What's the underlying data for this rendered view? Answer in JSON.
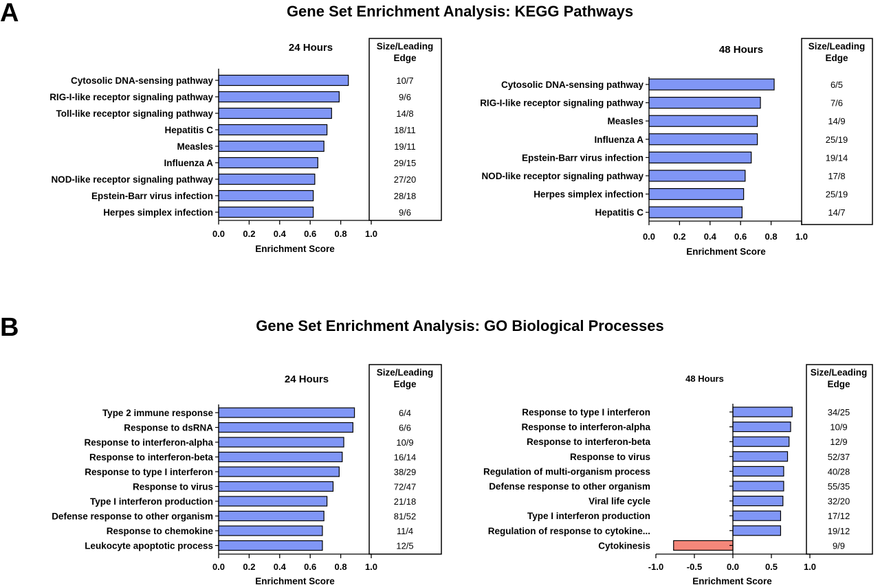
{
  "chart_data": [
    {
      "type": "bar",
      "orientation": "horizontal",
      "panel": "A",
      "title": "Gene Set Enrichment Analysis: KEGG Pathways",
      "subtitle": "24 Hours",
      "xlabel": "Enrichment Score",
      "xlim": [
        0,
        1
      ],
      "xticks": [
        "0.0",
        "0.2",
        "0.4",
        "0.6",
        "0.8",
        "1.0"
      ],
      "box_header": "Size/Leading Edge",
      "bar_color": "#8096f6",
      "categories": [
        "Cytosolic DNA-sensing pathway",
        "RIG-I-like receptor signaling pathway",
        "Toll-like receptor signaling pathway",
        "Hepatitis C",
        "Measles",
        "Influenza A",
        "NOD-like receptor signaling pathway",
        "Epstein-Barr virus infection",
        "Herpes simplex infection"
      ],
      "values": [
        0.85,
        0.79,
        0.74,
        0.71,
        0.69,
        0.65,
        0.63,
        0.62,
        0.62
      ],
      "leading_edge": [
        "10/7",
        "9/6",
        "14/8",
        "18/11",
        "19/11",
        "29/15",
        "27/20",
        "28/18",
        "9/6"
      ]
    },
    {
      "type": "bar",
      "orientation": "horizontal",
      "panel": "",
      "title": "",
      "subtitle": "48 Hours",
      "xlabel": "Enrichment Score",
      "xlim": [
        0,
        1
      ],
      "xticks": [
        "0.0",
        "0.2",
        "0.4",
        "0.6",
        "0.8",
        "1.0"
      ],
      "box_header": "Size/Leading Edge",
      "bar_color": "#8096f6",
      "categories": [
        "Cytosolic DNA-sensing pathway",
        "RIG-I-like receptor signaling pathway",
        "Measles",
        "Influenza A",
        "Epstein-Barr virus infection",
        "NOD-like receptor signaling pathway",
        "Herpes simplex infection",
        "Hepatitis C"
      ],
      "values": [
        0.82,
        0.73,
        0.71,
        0.71,
        0.67,
        0.63,
        0.62,
        0.61
      ],
      "leading_edge": [
        "6/5",
        "7/6",
        "14/9",
        "25/19",
        "19/14",
        "17/8",
        "25/19",
        "14/7"
      ]
    },
    {
      "type": "bar",
      "orientation": "horizontal",
      "panel": "B",
      "title": "Gene Set Enrichment Analysis: GO Biological Processes",
      "subtitle": "24 Hours",
      "xlabel": "Enrichment Score",
      "xlim": [
        0,
        1
      ],
      "xticks": [
        "0.0",
        "0.2",
        "0.4",
        "0.6",
        "0.8",
        "1.0"
      ],
      "box_header": "Size/Leading Edge",
      "bar_color": "#8096f6",
      "categories": [
        "Type 2 immune response",
        "Response to dsRNA",
        "Response to interferon-alpha",
        "Response to interferon-beta",
        "Response to type I interferon",
        "Response to virus",
        "Type I interferon production",
        "Defense response to other organism",
        "Response to chemokine",
        "Leukocyte apoptotic process"
      ],
      "values": [
        0.89,
        0.88,
        0.82,
        0.81,
        0.79,
        0.75,
        0.71,
        0.69,
        0.68,
        0.68
      ],
      "leading_edge": [
        "6/4",
        "6/6",
        "10/9",
        "16/14",
        "38/29",
        "72/47",
        "21/18",
        "81/52",
        "11/4",
        "12/5"
      ]
    },
    {
      "type": "bar",
      "orientation": "horizontal",
      "panel": "",
      "title": "",
      "subtitle": "48 Hours",
      "xlabel": "Enrichment Score",
      "xlim": [
        -1,
        1
      ],
      "xticks": [
        "-1.0",
        "-0.5",
        "0.0",
        "0.5",
        "1.0"
      ],
      "box_header": "Size/Leading Edge",
      "bar_color": "#8096f6",
      "negative_color": "#f5877a",
      "categories": [
        "Response to type I interferon",
        "Response to interferon-alpha",
        "Response to interferon-beta",
        "Response to virus",
        "Regulation of multi-organism process",
        "Defense response to other organism",
        "Viral life cycle",
        "Type I interferon production",
        "Regulation of response to cytokine...",
        "Cytokinesis"
      ],
      "values": [
        0.77,
        0.75,
        0.73,
        0.71,
        0.66,
        0.66,
        0.65,
        0.62,
        0.62,
        -0.77
      ],
      "leading_edge": [
        "34/25",
        "10/9",
        "12/9",
        "52/37",
        "40/28",
        "55/35",
        "32/20",
        "17/12",
        "19/12",
        "9/9"
      ]
    }
  ]
}
